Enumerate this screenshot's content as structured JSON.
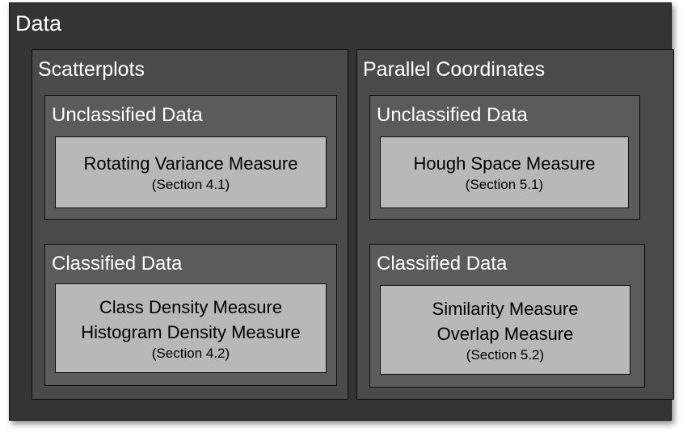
{
  "root": {
    "title": "Data"
  },
  "groups": [
    {
      "title": "Scatterplots",
      "sections": [
        {
          "title": "Unclassified Data",
          "lines": [
            "Rotating Variance Measure"
          ],
          "ref": "(Section 4.1)"
        },
        {
          "title": "Classified Data",
          "lines": [
            "Class Density Measure",
            "Histogram Density Measure"
          ],
          "ref": "(Section 4.2)"
        }
      ]
    },
    {
      "title": "Parallel Coordinates",
      "sections": [
        {
          "title": "Unclassified Data",
          "lines": [
            "Hough Space Measure"
          ],
          "ref": "(Section 5.1)"
        },
        {
          "title": "Classified Data",
          "lines": [
            "Similarity Measure",
            "Overlap Measure"
          ],
          "ref": "(Section 5.2)"
        }
      ]
    }
  ],
  "colors": {
    "outer": "#343434",
    "group": "#4a4a4a",
    "section": "#5b5b5b",
    "measure": "#b8b8b8",
    "border": "#0d0d0d"
  }
}
